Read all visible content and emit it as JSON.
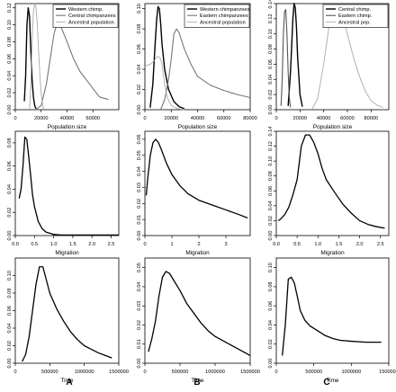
{
  "figure": {
    "column_labels": [
      "A",
      "B",
      "C"
    ]
  },
  "chart_data": [
    {
      "type": "line",
      "row": 0,
      "col": 0,
      "xlabel": "Population size",
      "ylabel": "",
      "xlim": [
        0,
        80000
      ],
      "ylim": [
        0,
        0.125
      ],
      "xticks": [
        0,
        20000,
        40000,
        60000
      ],
      "yticks": [
        0.0,
        0.02,
        0.04,
        0.06,
        0.08,
        0.1,
        0.12
      ],
      "xtick_labels": [
        "0",
        "20000",
        "40000",
        "60000"
      ],
      "ytick_labels": [
        "0.00",
        "0.02",
        "0.04",
        "0.06",
        "0.08",
        "0.10",
        "0.12"
      ],
      "legend": {
        "position": "top-right"
      },
      "series": [
        {
          "name": "Western chimp.",
          "color": "#000000",
          "width": 1.4,
          "x": [
            7000,
            8000,
            9000,
            10000,
            11000,
            12000,
            13000,
            14000,
            15000,
            16000
          ],
          "y": [
            0.01,
            0.04,
            0.1,
            0.12,
            0.11,
            0.07,
            0.035,
            0.015,
            0.005,
            0.001
          ]
        },
        {
          "name": "Central chimpanzees",
          "color": "#777777",
          "width": 1.1,
          "x": [
            16000,
            20000,
            24000,
            28000,
            30000,
            32000,
            34000,
            36000,
            40000,
            45000,
            50000,
            55000,
            60000,
            65000,
            72000
          ],
          "y": [
            0.0,
            0.005,
            0.03,
            0.07,
            0.09,
            0.1,
            0.1,
            0.095,
            0.08,
            0.06,
            0.045,
            0.035,
            0.025,
            0.015,
            0.012
          ]
        },
        {
          "name": "Ancestral population",
          "color": "#aaaaaa",
          "width": 0.9,
          "x": [
            11000,
            12000,
            13000,
            14000,
            15000,
            16000,
            17000,
            18000,
            19000,
            20000,
            21000,
            22000
          ],
          "y": [
            0.0,
            0.03,
            0.08,
            0.115,
            0.125,
            0.12,
            0.1,
            0.07,
            0.04,
            0.02,
            0.007,
            0.0
          ]
        }
      ]
    },
    {
      "type": "line",
      "row": 0,
      "col": 1,
      "xlabel": "Population size",
      "ylabel": "",
      "xlim": [
        0,
        80000
      ],
      "ylim": [
        0,
        0.105
      ],
      "xticks": [
        0,
        20000,
        40000,
        60000,
        80000
      ],
      "yticks": [
        0.0,
        0.02,
        0.04,
        0.06,
        0.08,
        0.1
      ],
      "xtick_labels": [
        "0",
        "20000",
        "40000",
        "60000",
        "80000"
      ],
      "ytick_labels": [
        "0.00",
        "0.02",
        "0.04",
        "0.06",
        "0.08",
        "0.10"
      ],
      "legend": {
        "position": "top-right"
      },
      "series": [
        {
          "name": "Western chimpanzees",
          "color": "#000000",
          "width": 1.4,
          "x": [
            4000,
            6000,
            8000,
            9000,
            10000,
            11000,
            12000,
            13000,
            15000,
            18000,
            22000,
            26000,
            30000
          ],
          "y": [
            0.002,
            0.025,
            0.07,
            0.09,
            0.102,
            0.1,
            0.085,
            0.065,
            0.04,
            0.02,
            0.008,
            0.003,
            0.001
          ]
        },
        {
          "name": "Eastern chimpanzees",
          "color": "#777777",
          "width": 1.1,
          "x": [
            12000,
            15000,
            18000,
            20000,
            22000,
            24000,
            26000,
            30000,
            35000,
            40000,
            50000,
            60000,
            70000,
            80000
          ],
          "y": [
            0.0,
            0.01,
            0.03,
            0.05,
            0.075,
            0.08,
            0.076,
            0.06,
            0.045,
            0.033,
            0.024,
            0.019,
            0.015,
            0.012
          ]
        },
        {
          "name": "Ancestral population",
          "color": "#aaaaaa",
          "width": 0.9,
          "x": [
            0,
            2000,
            4000,
            6000,
            8000,
            9000,
            10000,
            11000,
            12000,
            13000,
            14000,
            15000,
            17000,
            20000,
            25000,
            30000
          ],
          "y": [
            0.043,
            0.044,
            0.045,
            0.047,
            0.05,
            0.052,
            0.053,
            0.052,
            0.05,
            0.045,
            0.035,
            0.025,
            0.012,
            0.004,
            0.001,
            0.0
          ]
        }
      ]
    },
    {
      "type": "line",
      "row": 0,
      "col": 2,
      "xlabel": "Population size",
      "ylabel": "",
      "xlim": [
        0,
        95000
      ],
      "ylim": [
        0,
        0.14
      ],
      "xticks": [
        0,
        20000,
        40000,
        60000,
        80000
      ],
      "yticks": [
        0.0,
        0.02,
        0.04,
        0.06,
        0.08,
        0.1,
        0.12,
        0.14
      ],
      "xtick_labels": [
        "0",
        "20000",
        "40000",
        "60000",
        "80000"
      ],
      "ytick_labels": [
        "0.00",
        "0.02",
        "0.04",
        "0.06",
        "0.08",
        "0.10",
        "0.12",
        "0.14"
      ],
      "legend": {
        "position": "top-right"
      },
      "series": [
        {
          "name": "Central chimp.",
          "color": "#000000",
          "width": 1.4,
          "x": [
            10000,
            12000,
            14000,
            15000,
            16000,
            17000,
            18000,
            20000,
            22000
          ],
          "y": [
            0.005,
            0.05,
            0.12,
            0.14,
            0.135,
            0.11,
            0.07,
            0.02,
            0.004
          ]
        },
        {
          "name": "Eastern chimp.",
          "color": "#555555",
          "width": 1.1,
          "x": [
            4000,
            5000,
            6000,
            7000,
            8000,
            9000,
            10000,
            11000,
            12000
          ],
          "y": [
            0.005,
            0.04,
            0.1,
            0.13,
            0.132,
            0.1,
            0.05,
            0.015,
            0.003
          ]
        },
        {
          "name": "Ancestral pop.",
          "color": "#aaaaaa",
          "width": 0.9,
          "x": [
            30000,
            35000,
            40000,
            45000,
            48000,
            52000,
            56000,
            60000,
            65000,
            70000,
            75000,
            80000,
            85000,
            90000
          ],
          "y": [
            0.0,
            0.015,
            0.06,
            0.115,
            0.135,
            0.138,
            0.125,
            0.1,
            0.07,
            0.045,
            0.025,
            0.012,
            0.006,
            0.003
          ]
        }
      ]
    },
    {
      "type": "line",
      "row": 1,
      "col": 0,
      "xlabel": "Migration",
      "ylabel": "",
      "xlim": [
        0,
        2.7
      ],
      "ylim": [
        0,
        0.09
      ],
      "xticks": [
        0,
        0.5,
        1,
        1.5,
        2,
        2.5
      ],
      "yticks": [
        0.0,
        0.02,
        0.04,
        0.06,
        0.08
      ],
      "xtick_labels": [
        "0.0",
        "0.5",
        "1.0",
        "1.5",
        "2.0",
        "2.5"
      ],
      "ytick_labels": [
        "0.00",
        "0.02",
        "0.04",
        "0.06",
        "0.08"
      ],
      "series": [
        {
          "color": "#000000",
          "width": 1.3,
          "x": [
            0.1,
            0.15,
            0.2,
            0.25,
            0.3,
            0.35,
            0.4,
            0.45,
            0.5,
            0.6,
            0.7,
            0.8,
            0.9,
            1.0,
            1.2,
            1.5,
            2.0,
            2.5,
            2.7
          ],
          "y": [
            0.032,
            0.04,
            0.06,
            0.085,
            0.083,
            0.068,
            0.052,
            0.035,
            0.025,
            0.012,
            0.006,
            0.003,
            0.002,
            0.001,
            0.0005,
            0.0005,
            0.0005,
            0.0005,
            0.0005
          ]
        }
      ]
    },
    {
      "type": "line",
      "row": 1,
      "col": 1,
      "xlabel": "Migration",
      "ylabel": "",
      "xlim": [
        0,
        3.9
      ],
      "ylim": [
        0,
        0.065
      ],
      "xticks": [
        0,
        1,
        2,
        3
      ],
      "yticks": [
        0.0,
        0.01,
        0.02,
        0.03,
        0.04,
        0.05,
        0.06
      ],
      "xtick_labels": [
        "0",
        "1",
        "2",
        "3"
      ],
      "ytick_labels": [
        "0.00",
        "0.01",
        "0.02",
        "0.03",
        "0.04",
        "0.05",
        "0.06"
      ],
      "series": [
        {
          "color": "#000000",
          "width": 1.3,
          "x": [
            0.05,
            0.1,
            0.2,
            0.3,
            0.4,
            0.5,
            0.6,
            0.8,
            1.0,
            1.3,
            1.6,
            2.0,
            2.5,
            3.0,
            3.5,
            3.8
          ],
          "y": [
            0.025,
            0.035,
            0.05,
            0.058,
            0.06,
            0.058,
            0.054,
            0.045,
            0.038,
            0.031,
            0.026,
            0.022,
            0.019,
            0.016,
            0.013,
            0.011
          ]
        }
      ]
    },
    {
      "type": "line",
      "row": 1,
      "col": 2,
      "xlabel": "Migration",
      "ylabel": "",
      "xlim": [
        0,
        2.7
      ],
      "ylim": [
        0,
        0.14
      ],
      "xticks": [
        0,
        0.5,
        1,
        1.5,
        2,
        2.5
      ],
      "yticks": [
        0.0,
        0.02,
        0.04,
        0.06,
        0.08,
        0.1,
        0.12,
        0.14
      ],
      "xtick_labels": [
        "0.0",
        "0.5",
        "1.0",
        "1.5",
        "2.0",
        "2.5"
      ],
      "ytick_labels": [
        "0.00",
        "0.02",
        "0.04",
        "0.06",
        "0.08",
        "0.10",
        "0.12",
        "0.14"
      ],
      "series": [
        {
          "color": "#000000",
          "width": 1.3,
          "x": [
            0.05,
            0.1,
            0.2,
            0.3,
            0.4,
            0.5,
            0.6,
            0.7,
            0.8,
            0.9,
            1.0,
            1.1,
            1.2,
            1.4,
            1.6,
            1.8,
            2.0,
            2.2,
            2.4,
            2.6
          ],
          "y": [
            0.02,
            0.022,
            0.028,
            0.038,
            0.055,
            0.075,
            0.12,
            0.135,
            0.135,
            0.125,
            0.11,
            0.09,
            0.075,
            0.058,
            0.042,
            0.03,
            0.02,
            0.015,
            0.012,
            0.01
          ]
        }
      ]
    },
    {
      "type": "line",
      "row": 2,
      "col": 0,
      "xlabel": "Time",
      "ylabel": "",
      "xlim": [
        0,
        1500000
      ],
      "ylim": [
        0,
        0.12
      ],
      "xticks": [
        0,
        500000,
        1000000,
        1500000
      ],
      "yticks": [
        0.0,
        0.02,
        0.04,
        0.06,
        0.08,
        0.1
      ],
      "xtick_labels": [
        "0",
        "500000",
        "1000000",
        "1500000"
      ],
      "ytick_labels": [
        "0.00",
        "0.02",
        "0.04",
        "0.06",
        "0.08",
        "0.10"
      ],
      "series": [
        {
          "color": "#000000",
          "width": 1.3,
          "x": [
            100000,
            150000,
            200000,
            250000,
            300000,
            350000,
            400000,
            450000,
            500000,
            600000,
            700000,
            800000,
            900000,
            1000000,
            1100000,
            1200000,
            1300000,
            1400000
          ],
          "y": [
            0.002,
            0.01,
            0.03,
            0.06,
            0.09,
            0.11,
            0.11,
            0.095,
            0.08,
            0.062,
            0.048,
            0.036,
            0.027,
            0.02,
            0.016,
            0.012,
            0.009,
            0.006
          ]
        }
      ]
    },
    {
      "type": "line",
      "row": 2,
      "col": 1,
      "xlabel": "Time",
      "ylabel": "",
      "xlim": [
        0,
        1500000
      ],
      "ylim": [
        0,
        0.055
      ],
      "xticks": [
        0,
        500000,
        1000000,
        1500000
      ],
      "yticks": [
        0.0,
        0.01,
        0.02,
        0.03,
        0.04,
        0.05
      ],
      "xtick_labels": [
        "0",
        "500000",
        "1000000",
        "1500000"
      ],
      "ytick_labels": [
        "0.00",
        "0.01",
        "0.02",
        "0.03",
        "0.04",
        "0.05"
      ],
      "series": [
        {
          "color": "#000000",
          "width": 1.3,
          "x": [
            50000,
            100000,
            150000,
            200000,
            250000,
            300000,
            350000,
            400000,
            500000,
            600000,
            700000,
            800000,
            900000,
            1000000,
            1100000,
            1200000,
            1300000,
            1400000,
            1500000
          ],
          "y": [
            0.006,
            0.013,
            0.022,
            0.035,
            0.045,
            0.048,
            0.047,
            0.044,
            0.038,
            0.031,
            0.026,
            0.021,
            0.017,
            0.014,
            0.012,
            0.01,
            0.008,
            0.006,
            0.004
          ]
        }
      ]
    },
    {
      "type": "line",
      "row": 2,
      "col": 2,
      "xlabel": "Time",
      "ylabel": "",
      "xlim": [
        0,
        1500000
      ],
      "ylim": [
        0,
        0.11
      ],
      "xticks": [
        0,
        500000,
        1000000,
        1500000
      ],
      "yticks": [
        0.0,
        0.02,
        0.04,
        0.06,
        0.08,
        0.1
      ],
      "xtick_labels": [
        "0",
        "500000",
        "1000000",
        "1500000"
      ],
      "ytick_labels": [
        "0.00",
        "0.02",
        "0.04",
        "0.06",
        "0.08",
        "0.10"
      ],
      "series": [
        {
          "color": "#000000",
          "width": 1.3,
          "x": [
            80000,
            120000,
            160000,
            200000,
            240000,
            280000,
            320000,
            380000,
            450000,
            550000,
            650000,
            750000,
            850000,
            1000000,
            1200000,
            1400000
          ],
          "y": [
            0.008,
            0.04,
            0.088,
            0.09,
            0.084,
            0.07,
            0.055,
            0.045,
            0.039,
            0.034,
            0.029,
            0.026,
            0.024,
            0.023,
            0.022,
            0.022
          ]
        }
      ]
    }
  ]
}
